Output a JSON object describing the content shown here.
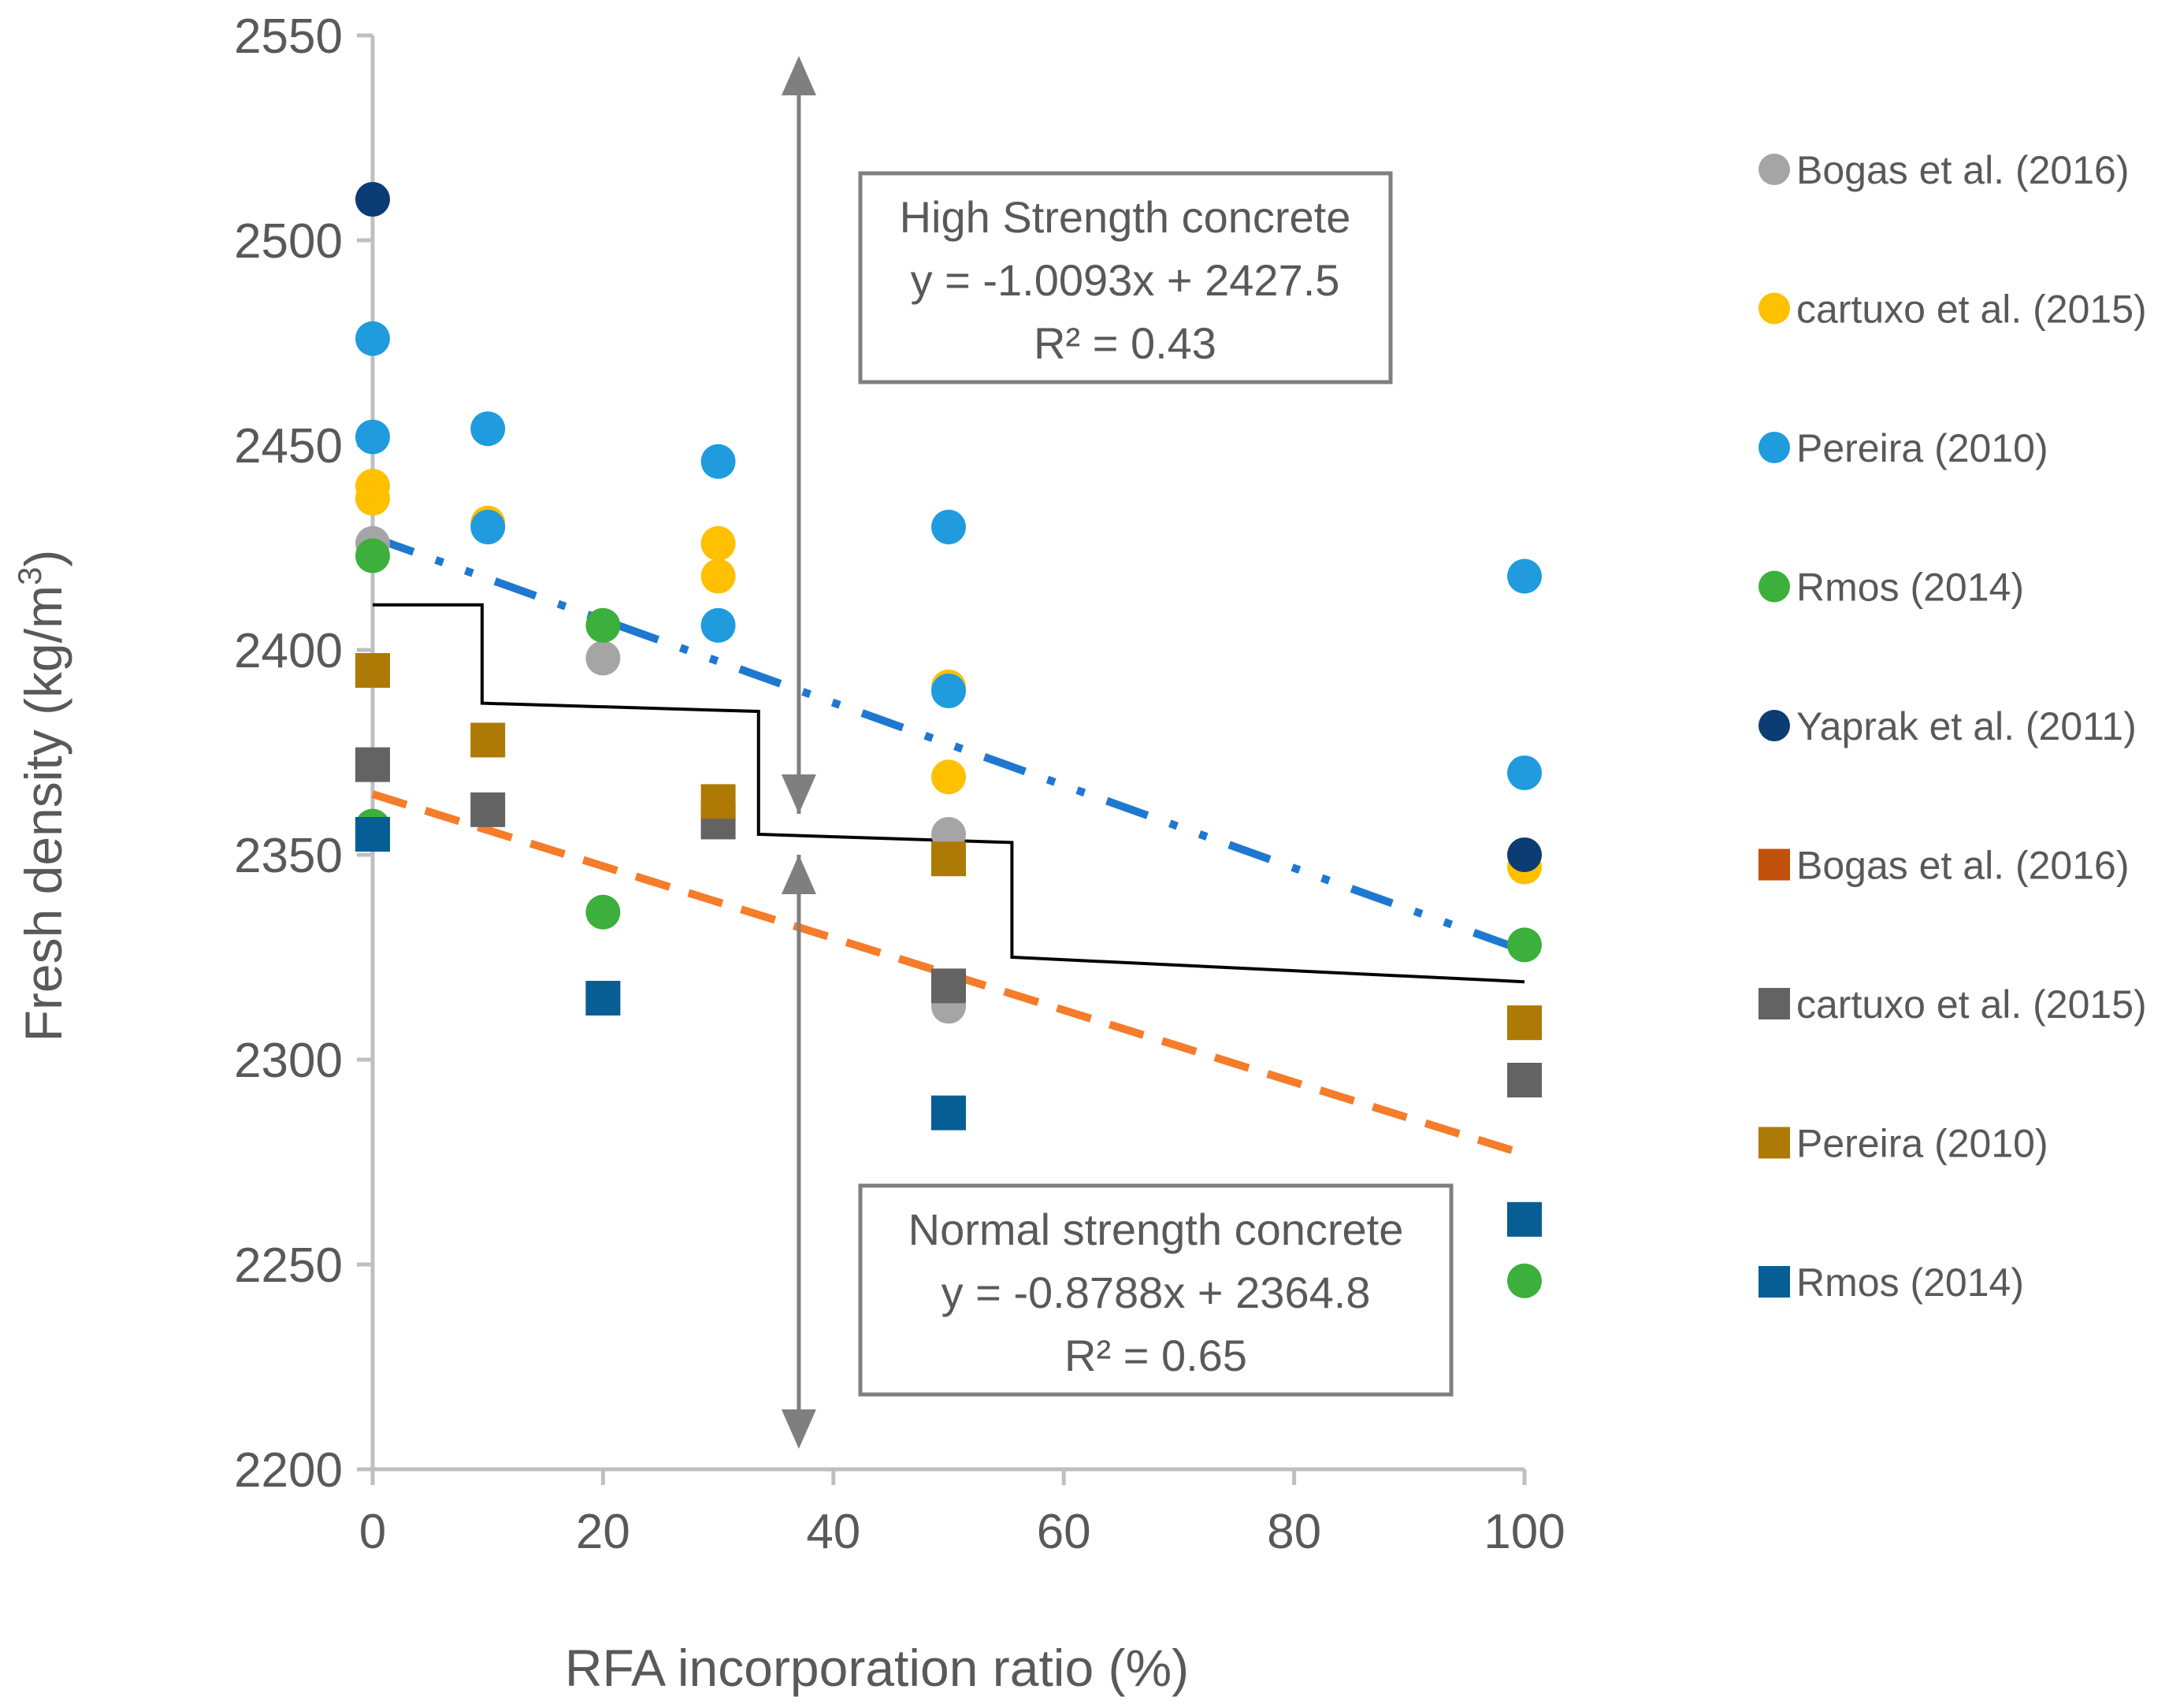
{
  "chart_data": {
    "type": "scatter",
    "xlabel": "RFA incorporation ratio (%)",
    "ylabel_main": "Fresh density (kg/m",
    "ylabel_sup": "3",
    "ylabel_close": ")",
    "xlim": [
      0,
      100
    ],
    "ylim": [
      2200,
      2550
    ],
    "xticks": [
      0,
      20,
      40,
      60,
      80,
      100
    ],
    "yticks": [
      2200,
      2250,
      2300,
      2350,
      2400,
      2450,
      2500,
      2550
    ],
    "series": [
      {
        "name": "Bogas et al. (2016)",
        "marker": "circle",
        "color": "#A5A5A5",
        "points": [
          [
            0,
            2426
          ],
          [
            20,
            2398
          ],
          [
            50,
            2355
          ],
          [
            50,
            2313
          ]
        ]
      },
      {
        "name": "cartuxo et al. (2015)",
        "marker": "circle",
        "color": "#FFC000",
        "points": [
          [
            0,
            2440
          ],
          [
            0,
            2437
          ],
          [
            10,
            2431
          ],
          [
            30,
            2426
          ],
          [
            30,
            2418
          ],
          [
            50,
            2391
          ],
          [
            50,
            2369
          ],
          [
            100,
            2347
          ]
        ]
      },
      {
        "name": "Pereira (2010)",
        "marker": "circle",
        "color": "#1F9BDE",
        "points": [
          [
            0,
            2476
          ],
          [
            0,
            2452
          ],
          [
            10,
            2454
          ],
          [
            10,
            2430
          ],
          [
            30,
            2446
          ],
          [
            30,
            2406
          ],
          [
            50,
            2430
          ],
          [
            50,
            2390
          ],
          [
            100,
            2418
          ],
          [
            100,
            2370
          ]
        ]
      },
      {
        "name": "Rmos (2014)",
        "marker": "circle",
        "color": "#3CAF3C",
        "points": [
          [
            0,
            2423
          ],
          [
            0,
            2357
          ],
          [
            20,
            2406
          ],
          [
            20,
            2336
          ],
          [
            100,
            2328
          ],
          [
            100,
            2246
          ]
        ]
      },
      {
        "name": "Yaprak et al. (2011)",
        "marker": "circle",
        "color": "#0B3C73",
        "points": [
          [
            0,
            2510
          ],
          [
            100,
            2350
          ]
        ]
      },
      {
        "name": "Bogas et al. (2016)",
        "marker": "square",
        "color": "#C0500A",
        "points": []
      },
      {
        "name": "cartuxo et al. (2015)",
        "marker": "square",
        "color": "#636363",
        "points": [
          [
            0,
            2372
          ],
          [
            10,
            2361
          ],
          [
            30,
            2358
          ],
          [
            50,
            2318
          ],
          [
            100,
            2295
          ]
        ]
      },
      {
        "name": "Pereira (2010)",
        "marker": "square",
        "color": "#AD7A06",
        "points": [
          [
            0,
            2395
          ],
          [
            10,
            2378
          ],
          [
            30,
            2363
          ],
          [
            50,
            2349
          ],
          [
            100,
            2309
          ]
        ]
      },
      {
        "name": "Rmos (2014)",
        "marker": "square",
        "color": "#075E95",
        "points": [
          [
            0,
            2355
          ],
          [
            20,
            2315
          ],
          [
            50,
            2287
          ],
          [
            100,
            2261
          ]
        ]
      }
    ],
    "trendlines": [
      {
        "name": "High strength trend",
        "slope": -1.0093,
        "intercept": 2427.5,
        "x": [
          0,
          100
        ],
        "color": "#1F78D0",
        "style": "dashdotdot"
      },
      {
        "name": "Normal strength trend",
        "slope": -0.8788,
        "intercept": 2364.8,
        "x": [
          0,
          100
        ],
        "color": "#F57C2A",
        "style": "dashed"
      }
    ],
    "step_line": {
      "color": "#000000",
      "points": [
        [
          0,
          2411
        ],
        [
          9.5,
          2411
        ],
        [
          9.5,
          2387
        ],
        [
          33.5,
          2385
        ],
        [
          33.5,
          2355
        ],
        [
          55.5,
          2353
        ],
        [
          55.5,
          2325
        ],
        [
          100,
          2319
        ]
      ]
    },
    "arrows": [
      {
        "x": 37,
        "y_from": 2360,
        "y_to": 2545
      },
      {
        "x": 37,
        "y_from": 2350,
        "y_to": 2205
      }
    ],
    "annotations": {
      "high": {
        "title": "High Strength concrete",
        "equation": "y = -1.0093x + 2427.5",
        "r2": "R² = 0.43"
      },
      "normal": {
        "title": "Normal strength concrete",
        "equation": "y = -0.8788x + 2364.8",
        "r2": "R² = 0.65"
      }
    }
  }
}
